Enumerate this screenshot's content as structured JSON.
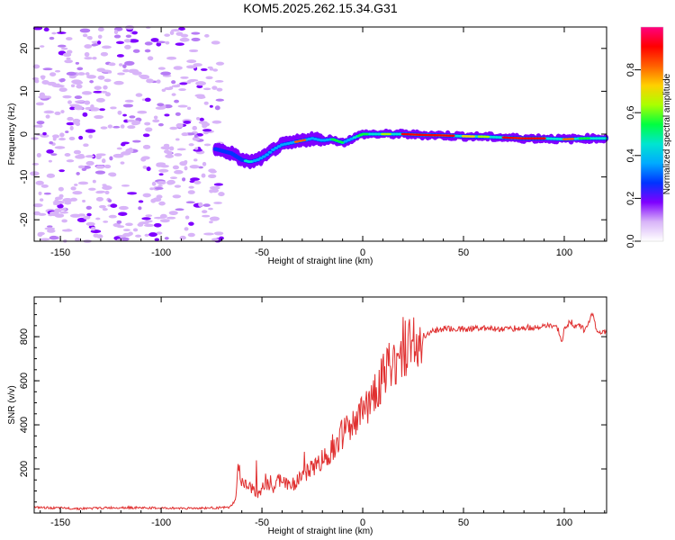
{
  "title": "KOM5.2025.262.15.34.G31",
  "chart_data": [
    {
      "type": "heatmap",
      "xlabel": "Height of straight line (km)",
      "ylabel": "Frequency (Hz)",
      "xlim": [
        -163,
        121
      ],
      "ylim": [
        -25,
        25
      ],
      "xticks": [
        -150,
        -100,
        -50,
        0,
        50,
        100
      ],
      "yticks": [
        -20,
        -10,
        0,
        10,
        20
      ],
      "noise_region_x": [
        -163,
        -70
      ],
      "signal_trace": {
        "x": [
          -73,
          -65,
          -60,
          -56,
          -52,
          -48,
          -44,
          -40,
          -35,
          -30,
          -25,
          -20,
          -15,
          -10,
          -5,
          0,
          10,
          20,
          30,
          40,
          50,
          60,
          70,
          80,
          90,
          100,
          110,
          121
        ],
        "y": [
          -3.5,
          -4.5,
          -6,
          -6.5,
          -6,
          -5,
          -3.5,
          -2.5,
          -2,
          -1.5,
          -1,
          -1.5,
          -1.2,
          -2,
          -1,
          0,
          0,
          0,
          -0.2,
          -0.3,
          -0.5,
          -0.6,
          -0.8,
          -1,
          -1,
          -1.2,
          -1,
          -1
        ]
      },
      "colorbar": {
        "label": "Normalized spectral amplitude",
        "range": [
          0,
          1
        ],
        "ticks": [
          "0.0",
          "0.2",
          "0.4",
          "0.6",
          "0.8"
        ],
        "colors": [
          "#ffffff",
          "#d8b4f8",
          "#7f00ff",
          "#0033ff",
          "#00aaff",
          "#00e5d0",
          "#00ff40",
          "#aaff00",
          "#ffd000",
          "#ff6000",
          "#ff0000",
          "#ff0080"
        ]
      }
    },
    {
      "type": "line",
      "xlabel": "Height of straight line (km)",
      "ylabel": "SNR (v/v)",
      "xlim": [
        -163,
        121
      ],
      "ylim": [
        0,
        980
      ],
      "xticks": [
        -150,
        -100,
        -50,
        0,
        50,
        100
      ],
      "yticks": [
        200,
        400,
        600,
        800
      ],
      "color": "#e03030",
      "series": [
        {
          "name": "SNR",
          "x": [
            -163,
            -140,
            -120,
            -100,
            -80,
            -66,
            -63,
            -62,
            -60,
            -58,
            -55,
            -52,
            -50,
            -47,
            -45,
            -42,
            -40,
            -37,
            -35,
            -32,
            -30,
            -27,
            -25,
            -22,
            -20,
            -17,
            -15,
            -12,
            -10,
            -7,
            -5,
            -2,
            0,
            3,
            5,
            8,
            10,
            13,
            15,
            18,
            20,
            23,
            25,
            28,
            30,
            33,
            35,
            40,
            50,
            60,
            70,
            80,
            90,
            95,
            97,
            99,
            100,
            103,
            105,
            108,
            110,
            112,
            114,
            116,
            118,
            121
          ],
          "y": [
            25,
            20,
            25,
            22,
            22,
            25,
            60,
            200,
            150,
            120,
            110,
            95,
            115,
            130,
            100,
            145,
            160,
            120,
            130,
            150,
            175,
            185,
            215,
            225,
            240,
            270,
            300,
            320,
            360,
            380,
            390,
            430,
            460,
            500,
            540,
            580,
            620,
            650,
            680,
            710,
            730,
            755,
            770,
            790,
            805,
            815,
            825,
            835,
            835,
            840,
            835,
            840,
            845,
            850,
            830,
            760,
            840,
            870,
            850,
            850,
            830,
            870,
            900,
            830,
            820,
            825
          ]
        }
      ]
    }
  ]
}
